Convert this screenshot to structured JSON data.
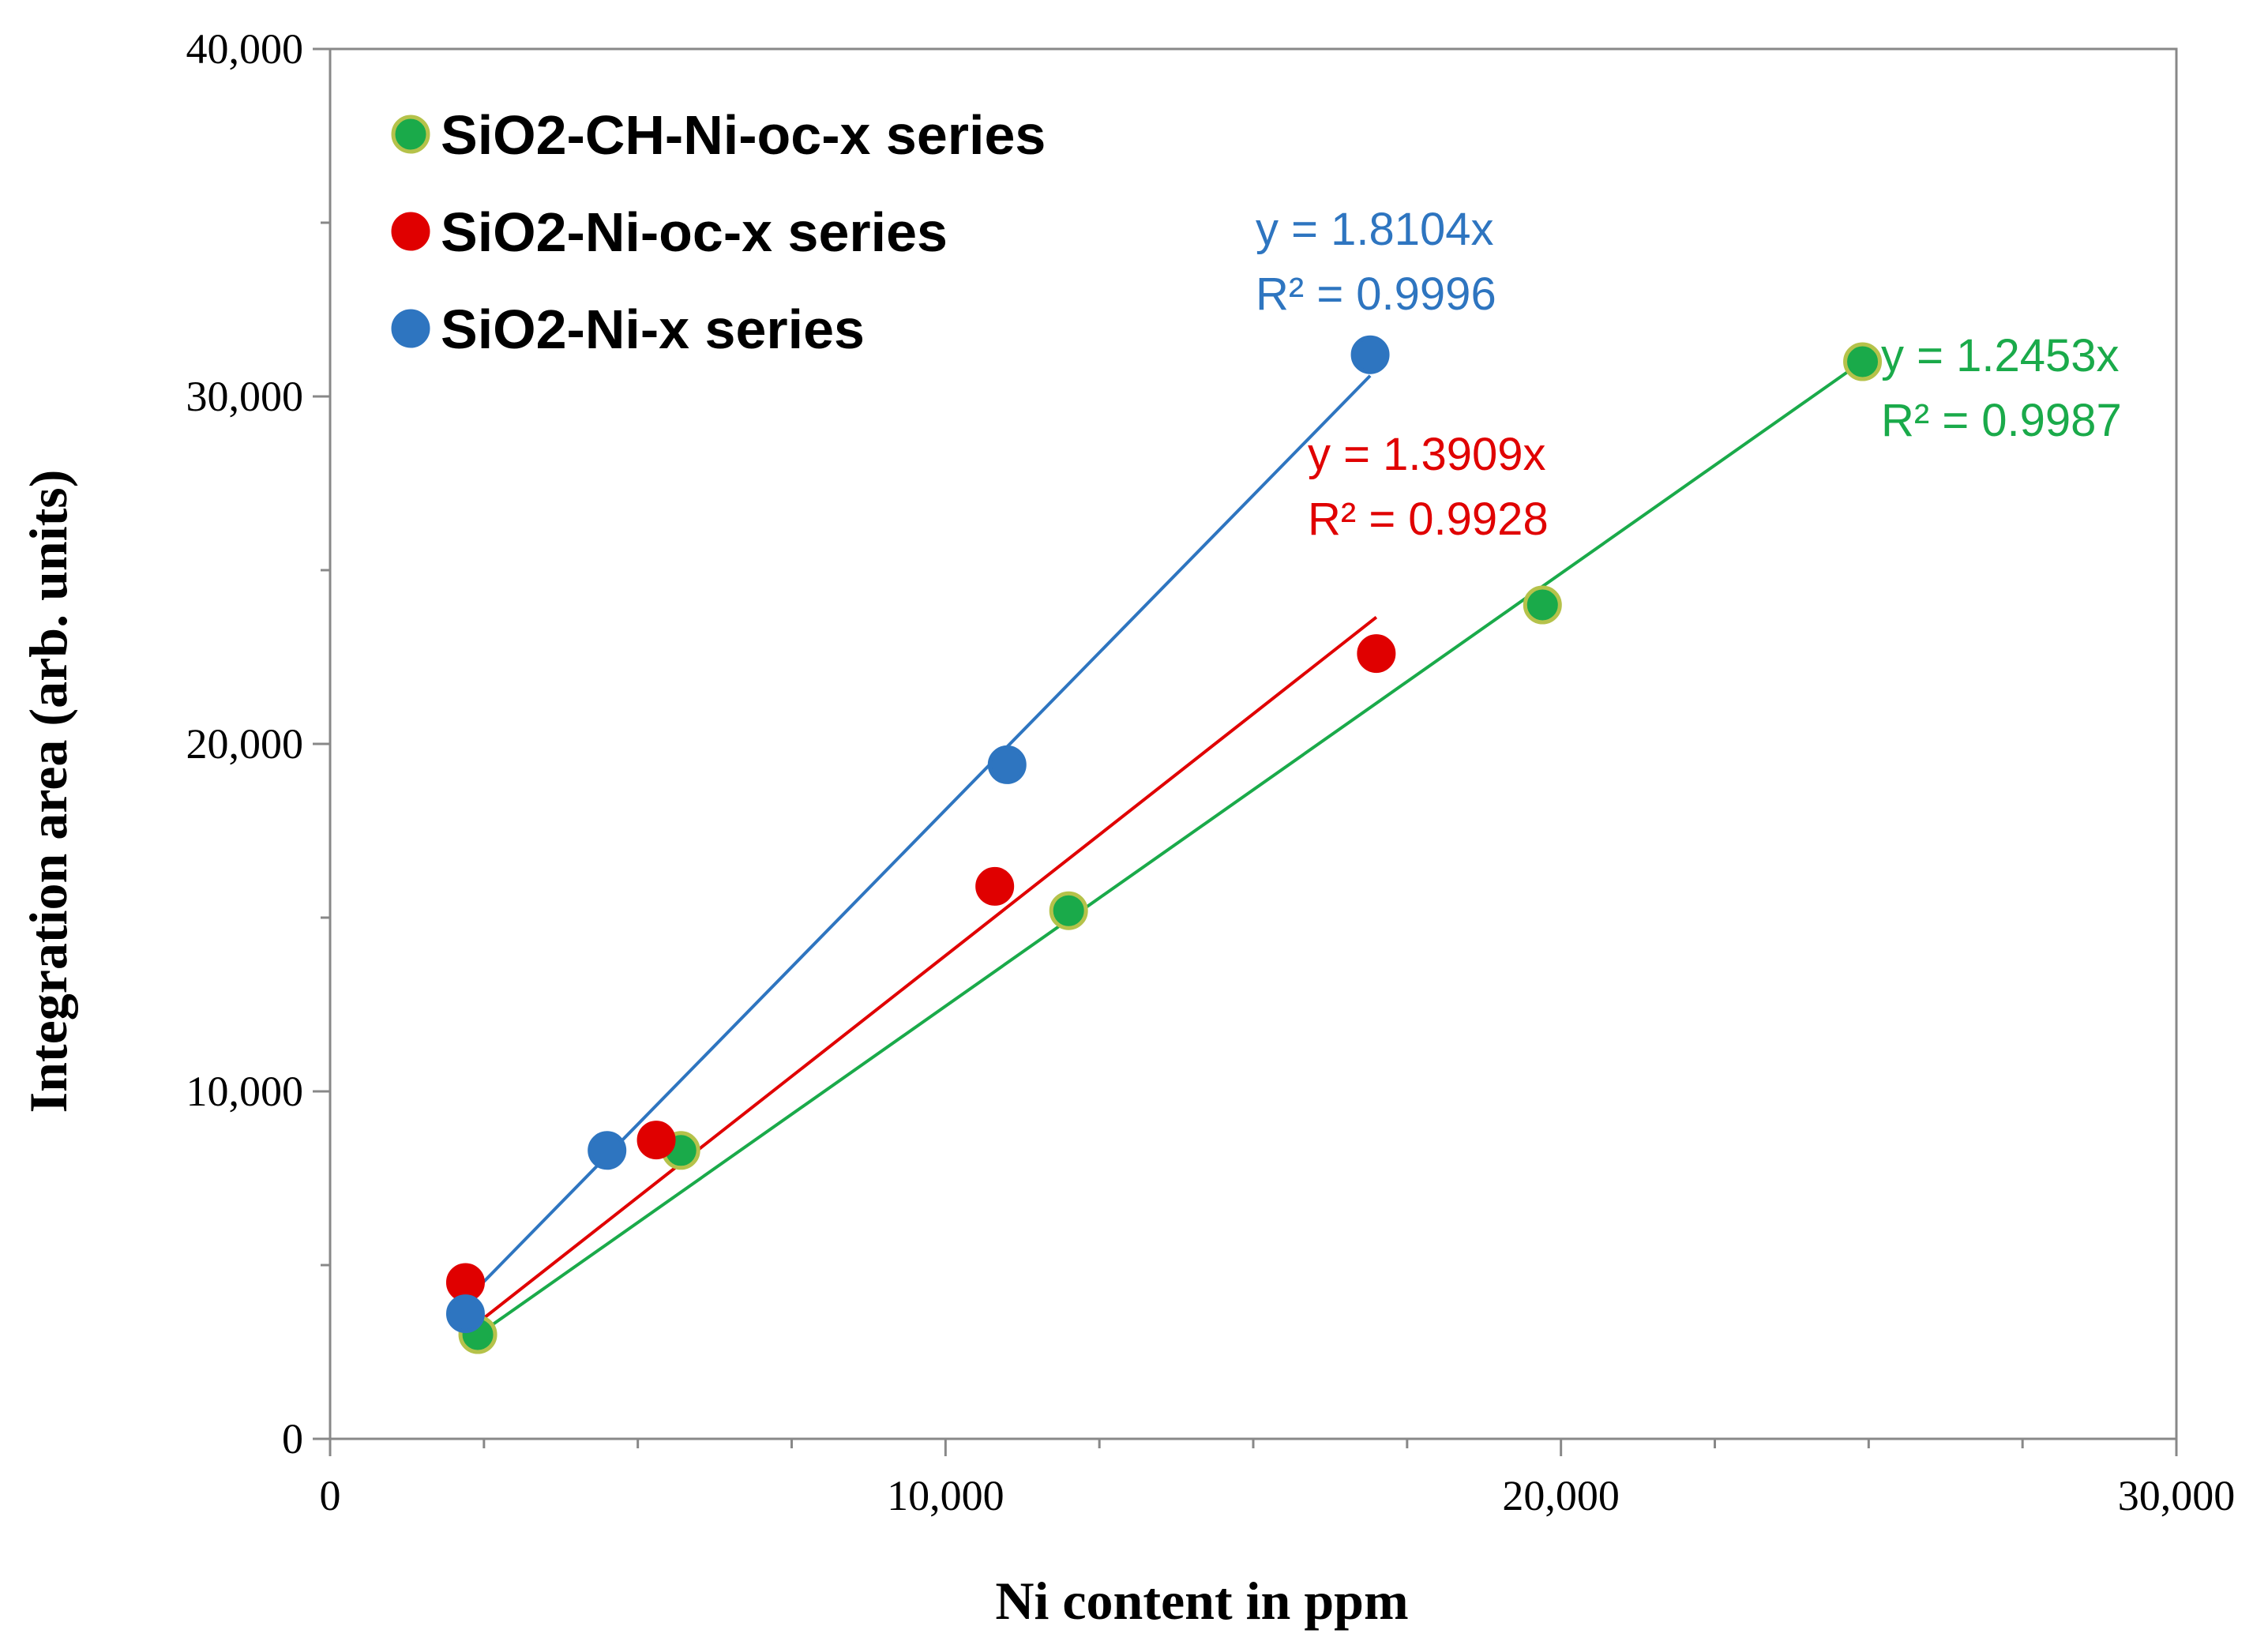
{
  "chart_data": {
    "type": "scatter",
    "title": "",
    "xlabel": "Ni content in ppm",
    "ylabel": "Integration area (arb. units)",
    "xlim": [
      0,
      30000
    ],
    "ylim": [
      0,
      40000
    ],
    "x_major_ticks": [
      0,
      10000,
      20000,
      30000
    ],
    "x_tick_labels": [
      "0",
      "10,000",
      "20,000",
      "30,000"
    ],
    "x_minor_step": 2500,
    "y_major_ticks": [
      0,
      10000,
      20000,
      30000,
      40000
    ],
    "y_tick_labels": [
      "0",
      "10,000",
      "20,000",
      "30,000",
      "40,000"
    ],
    "y_minor_step": 5000,
    "grid": false,
    "legend_position": "top-left",
    "series": [
      {
        "name": "SiO2-CH-Ni-oc-x  series",
        "color": "#1aaa4a",
        "edge_color": "#b5c24a",
        "points": [
          [
            2400,
            3000
          ],
          [
            5700,
            8300
          ],
          [
            12000,
            15200
          ],
          [
            19700,
            24000
          ],
          [
            24900,
            31000
          ]
        ],
        "fit": {
          "slope": 1.2453,
          "x_range": [
            2400,
            24900
          ]
        },
        "annotation": [
          "y = 1.2453x",
          "R² = 0.9987"
        ]
      },
      {
        "name": "SiO2-Ni-oc-x  series",
        "color": "#e00000",
        "edge_color": "#e00000",
        "points": [
          [
            2200,
            4500
          ],
          [
            5300,
            8600
          ],
          [
            10800,
            15900
          ],
          [
            17000,
            22600
          ]
        ],
        "fit": {
          "slope": 1.3909,
          "x_range": [
            2200,
            17000
          ]
        },
        "annotation": [
          "y = 1.3909x",
          "R² = 0.9928"
        ]
      },
      {
        "name": "SiO2-Ni-x  series",
        "color": "#2e75c0",
        "edge_color": "#2e75c0",
        "points": [
          [
            2200,
            3600
          ],
          [
            4500,
            8300
          ],
          [
            11000,
            19400
          ],
          [
            16900,
            31200
          ]
        ],
        "fit": {
          "slope": 1.8104,
          "x_range": [
            2200,
            16900
          ]
        },
        "annotation": [
          "y = 1.8104x",
          "R² = 0.9996"
        ]
      }
    ]
  }
}
